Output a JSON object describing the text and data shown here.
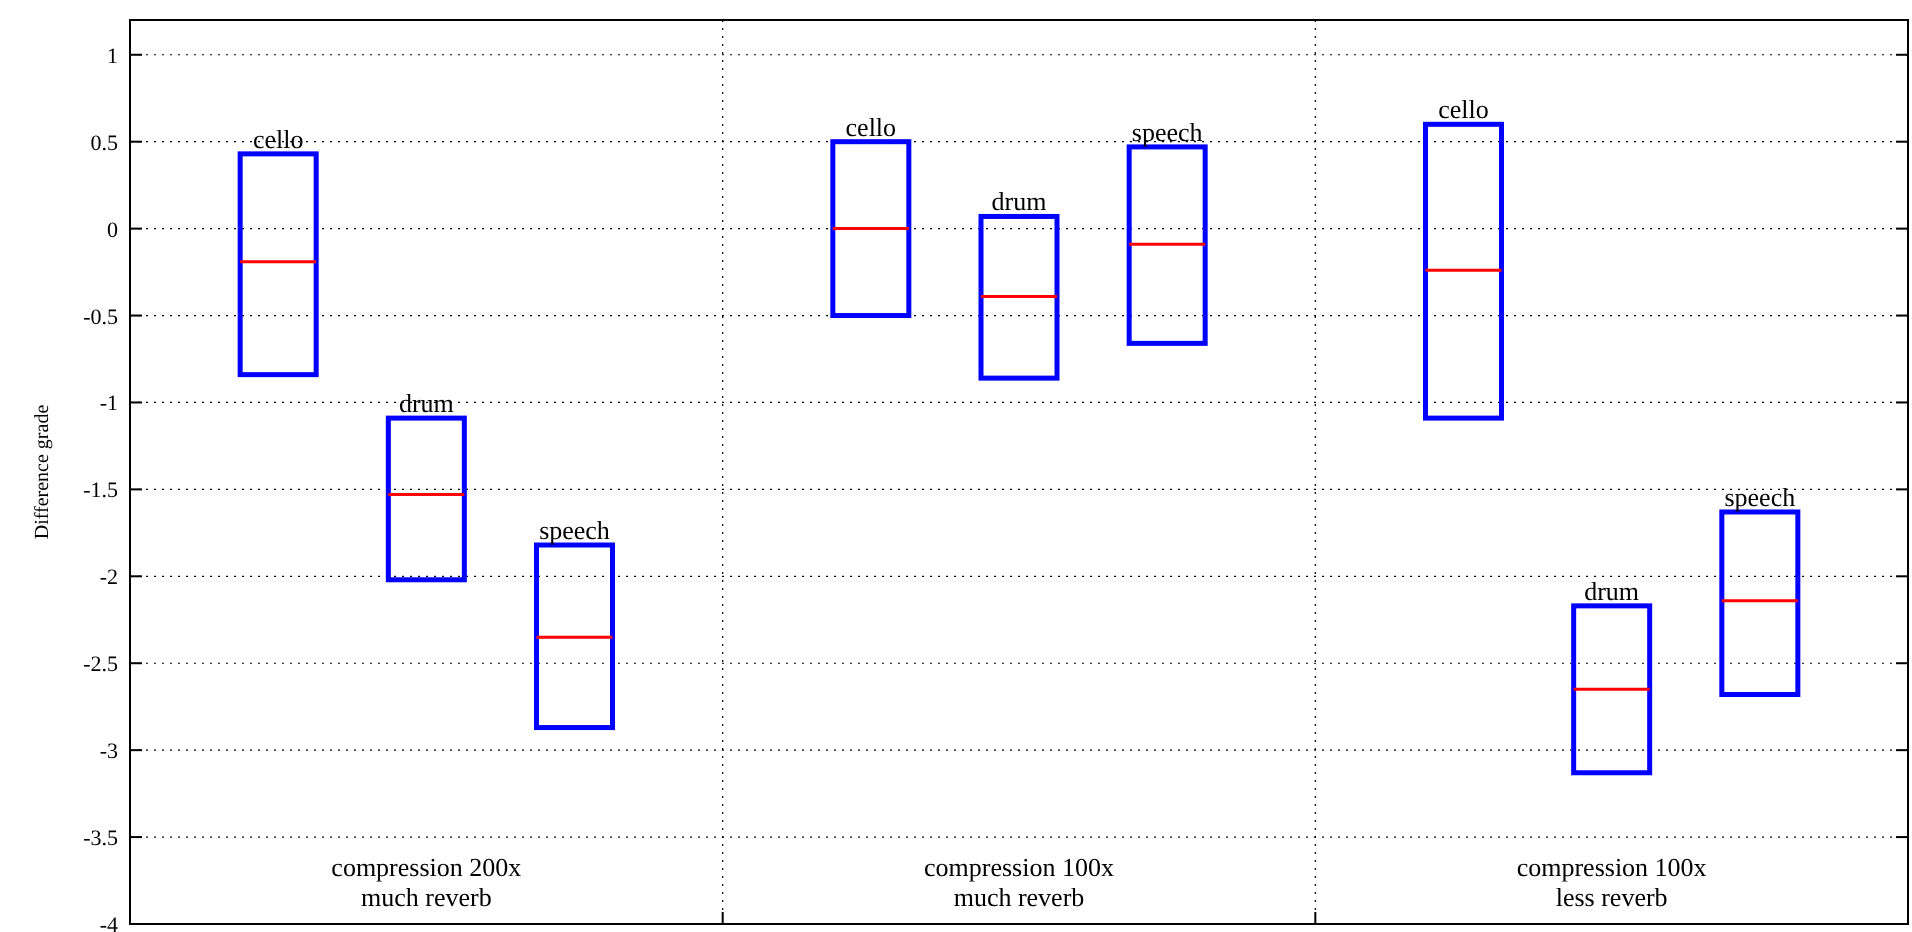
{
  "chart_data": {
    "type": "box",
    "ylabel": "Difference grade",
    "categories": [
      "cello",
      "drum",
      "speech",
      "cello",
      "drum",
      "speech",
      "cello",
      "drum",
      "speech"
    ],
    "series": [
      {
        "color": "#0000ff",
        "boxes": [
          {
            "low": -0.84,
            "q1": -0.84,
            "median": -0.19,
            "q3": 0.43,
            "high": 0.43
          },
          {
            "low": -2.02,
            "q1": -2.02,
            "median": -1.53,
            "q3": -1.09,
            "high": -1.09
          },
          {
            "low": -2.87,
            "q1": -2.87,
            "median": -2.35,
            "q3": -1.82,
            "high": -1.82
          },
          {
            "low": -0.5,
            "q1": -0.5,
            "median": 0,
            "q3": 0.5,
            "high": 0.5
          },
          {
            "low": -0.86,
            "q1": -0.86,
            "median": -0.39,
            "q3": 0.07,
            "high": 0.07
          },
          {
            "low": -0.66,
            "q1": -0.66,
            "median": -0.09,
            "q3": 0.47,
            "high": 0.47
          },
          {
            "low": -1.09,
            "q1": -1.09,
            "median": -0.24,
            "q3": 0.6,
            "high": 0.6
          },
          {
            "low": -3.13,
            "q1": -3.13,
            "median": -2.65,
            "q3": -2.17,
            "high": -2.17
          },
          {
            "low": -2.68,
            "q1": -2.68,
            "median": -2.14,
            "q3": -1.63,
            "high": -1.63
          }
        ]
      }
    ],
    "ylim": [
      -4,
      1.2
    ],
    "yticks": [
      -4,
      -3.5,
      -3,
      -2.5,
      -2,
      -1.5,
      -1,
      -0.5,
      0,
      0.5,
      1
    ],
    "grid": "y",
    "annotations": [
      "compression 200x\nmuch reverb",
      "compression 100x\nmuch reverb",
      "compression 100x\nless reverb"
    ]
  }
}
